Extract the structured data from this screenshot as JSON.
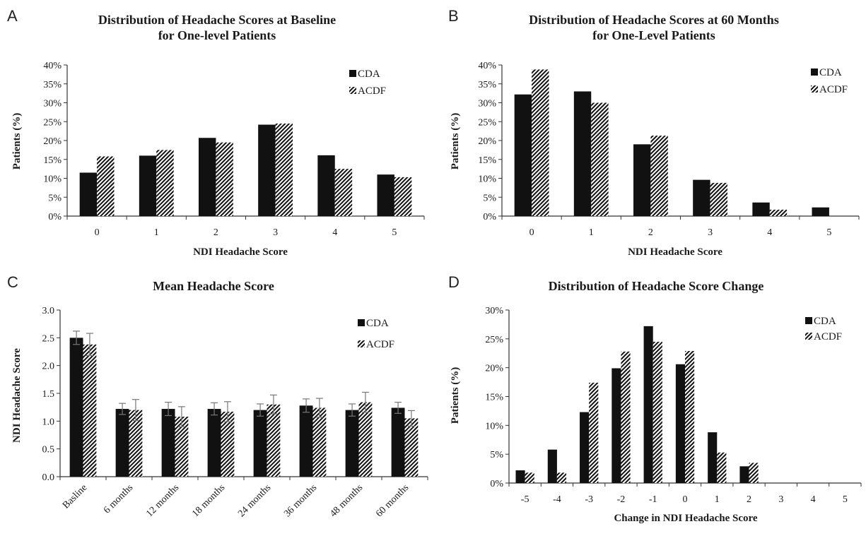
{
  "chart_data": [
    {
      "panel": "A",
      "type": "bar",
      "title": [
        "Distribution  of Headache Scores at Baseline",
        "for One-level Patients"
      ],
      "xlabel": "NDI  Headache  Score",
      "ylabel": "Patients (%)",
      "categories": [
        "0",
        "1",
        "2",
        "3",
        "4",
        "5"
      ],
      "ylim": [
        0,
        40
      ],
      "yticks": [
        0,
        5,
        10,
        15,
        20,
        25,
        30,
        35,
        40
      ],
      "ytick_suffix": "%",
      "ytick_decimals": 0,
      "series": [
        {
          "name": "CDA",
          "style": "solid",
          "values": [
            11.5,
            16.0,
            20.7,
            24.2,
            16.1,
            11.0
          ]
        },
        {
          "name": "ACDF",
          "style": "hatch",
          "values": [
            15.8,
            17.5,
            19.5,
            24.5,
            12.5,
            10.3
          ]
        }
      ],
      "legend": "top-right",
      "grid": false
    },
    {
      "panel": "B",
      "type": "bar",
      "title": [
        "Distribution  of Headache Scores at 60 Months",
        "for One-Level Patients"
      ],
      "xlabel": "NDI  Headache  Score",
      "ylabel": "Patients (%)",
      "categories": [
        "0",
        "1",
        "2",
        "3",
        "4",
        "5"
      ],
      "ylim": [
        0,
        40
      ],
      "yticks": [
        0,
        5,
        10,
        15,
        20,
        25,
        30,
        35,
        40
      ],
      "ytick_suffix": "%",
      "ytick_decimals": 0,
      "series": [
        {
          "name": "CDA",
          "style": "solid",
          "values": [
            32.2,
            33.0,
            19.0,
            9.6,
            3.6,
            2.3
          ]
        },
        {
          "name": "ACDF",
          "style": "hatch",
          "values": [
            38.8,
            30.0,
            21.3,
            8.8,
            1.7,
            0
          ]
        }
      ],
      "legend": "top-right",
      "grid": false
    },
    {
      "panel": "C",
      "type": "bar",
      "title": [
        "Mean Headache Score"
      ],
      "xlabel": "",
      "ylabel": "NDI Headache  Score",
      "categories": [
        "Basline",
        "6 months",
        "12 months",
        "18 months",
        "24  months",
        "36 months",
        "48 months",
        "60 months"
      ],
      "xtick_rotation": -45,
      "ylim": [
        0,
        3.0
      ],
      "yticks": [
        0,
        0.5,
        1.0,
        1.5,
        2.0,
        2.5,
        3.0
      ],
      "ytick_suffix": "",
      "ytick_decimals": 1,
      "series": [
        {
          "name": "CDA",
          "style": "solid",
          "values": [
            2.5,
            1.22,
            1.22,
            1.22,
            1.2,
            1.28,
            1.2,
            1.24
          ],
          "errors": [
            0.12,
            0.1,
            0.12,
            0.11,
            0.11,
            0.12,
            0.11,
            0.1
          ]
        },
        {
          "name": "ACDF",
          "style": "hatch",
          "values": [
            2.38,
            1.2,
            1.08,
            1.17,
            1.3,
            1.24,
            1.34,
            1.05
          ],
          "errors": [
            0.2,
            0.19,
            0.18,
            0.18,
            0.17,
            0.17,
            0.18,
            0.14
          ]
        }
      ],
      "legend": "top-right",
      "grid": false
    },
    {
      "panel": "D",
      "type": "bar",
      "title": [
        "Distribution  of Headache Score Change"
      ],
      "xlabel": "Change  in NDI  Headache  Score",
      "ylabel": "Patients (%)",
      "categories": [
        "-5",
        "-4",
        "-3",
        "-2",
        "-1",
        "0",
        "1",
        "2",
        "3",
        "4",
        "5"
      ],
      "ylim": [
        0,
        30
      ],
      "yticks": [
        0,
        5,
        10,
        15,
        20,
        25,
        30
      ],
      "ytick_suffix": "%",
      "ytick_decimals": 0,
      "series": [
        {
          "name": "CDA",
          "style": "solid",
          "values": [
            2.2,
            5.8,
            12.3,
            19.9,
            27.2,
            20.6,
            8.8,
            2.9,
            0,
            0,
            0
          ]
        },
        {
          "name": "ACDF",
          "style": "hatch",
          "values": [
            1.8,
            1.8,
            17.4,
            22.8,
            24.5,
            22.9,
            5.3,
            3.5,
            0,
            0,
            0
          ]
        }
      ],
      "legend": "top-right",
      "grid": false
    }
  ]
}
